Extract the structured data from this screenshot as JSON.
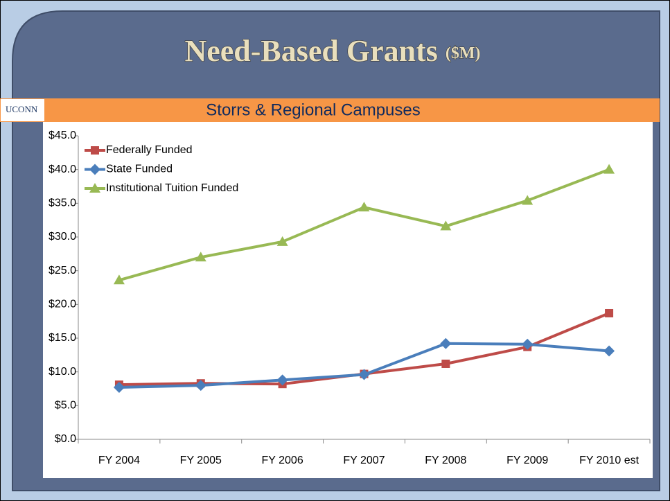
{
  "chart_data": {
    "type": "line",
    "title": "Need-Based Grants",
    "title_unit": "($M)",
    "subtitle": "Storrs & Regional Campuses",
    "logo": "UCONN",
    "categories": [
      "FY 2004",
      "FY 2005",
      "FY 2006",
      "FY 2007",
      "FY 2008",
      "FY 2009",
      "FY 2010 est"
    ],
    "series": [
      {
        "name": "Federally Funded",
        "color": "#be4b48",
        "marker": "square",
        "values": [
          8.1,
          8.3,
          8.2,
          9.7,
          11.2,
          13.7,
          18.7
        ]
      },
      {
        "name": "State Funded",
        "color": "#4a7ebb",
        "marker": "diamond",
        "values": [
          7.7,
          8.0,
          8.8,
          9.6,
          14.2,
          14.1,
          13.1
        ]
      },
      {
        "name": "Institutional Tuition Funded",
        "color": "#98b954",
        "marker": "triangle",
        "values": [
          23.6,
          27.0,
          29.3,
          34.4,
          31.6,
          35.4,
          40.0
        ]
      }
    ],
    "ylim": [
      0,
      45
    ],
    "yticks": [
      {
        "value": 0,
        "label": "$0.0"
      },
      {
        "value": 5,
        "label": "$5.0"
      },
      {
        "value": 10,
        "label": "$10.0"
      },
      {
        "value": 15,
        "label": "$15.0"
      },
      {
        "value": 20,
        "label": "$20.0"
      },
      {
        "value": 25,
        "label": "$25.0"
      },
      {
        "value": 30,
        "label": "$30.0"
      },
      {
        "value": 35,
        "label": "$35.0"
      },
      {
        "value": 40,
        "label": "$40.0"
      },
      {
        "value": 45,
        "label": "$45.0"
      }
    ],
    "grid": false,
    "legend": "top-left"
  }
}
